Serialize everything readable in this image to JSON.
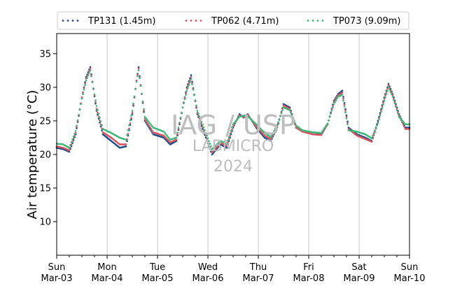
{
  "chart_data": {
    "type": "scatter",
    "ylabel": "Air temperature (°C)",
    "xlabel": "",
    "ylim": [
      5,
      38
    ],
    "xlim_days": [
      "2024-03-03",
      "2024-03-10"
    ],
    "yticks": [
      10,
      15,
      20,
      25,
      30,
      35
    ],
    "xticks": [
      {
        "day": "Sun",
        "date": "Mar-03"
      },
      {
        "day": "Mon",
        "date": "Mar-04"
      },
      {
        "day": "Tue",
        "date": "Mar-05"
      },
      {
        "day": "Wed",
        "date": "Mar-06"
      },
      {
        "day": "Thu",
        "date": "Mar-07"
      },
      {
        "day": "Fri",
        "date": "Mar-08"
      },
      {
        "day": "Sat",
        "date": "Mar-09"
      },
      {
        "day": "Sun",
        "date": "Mar-10"
      }
    ],
    "grid": "vertical",
    "legend_position": "top",
    "watermark": [
      "IAG / USP",
      "LABMICRO",
      "2024"
    ],
    "series": [
      {
        "name": "TP131 (1.45m)",
        "color": "#1f4e8c",
        "x": [
          "2024-03-03 00:00",
          "2024-03-03 03:00",
          "2024-03-03 06:00",
          "2024-03-03 09:00",
          "2024-03-03 12:00",
          "2024-03-03 14:00",
          "2024-03-03 16:00",
          "2024-03-03 19:00",
          "2024-03-03 22:00",
          "2024-03-04 02:00",
          "2024-03-04 06:00",
          "2024-03-04 09:00",
          "2024-03-04 12:00",
          "2024-03-04 14:00",
          "2024-03-04 15:00",
          "2024-03-04 18:00",
          "2024-03-04 22:00",
          "2024-03-05 03:00",
          "2024-03-05 06:00",
          "2024-03-05 09:00",
          "2024-03-05 12:00",
          "2024-03-05 14:00",
          "2024-03-05 16:00",
          "2024-03-05 19:00",
          "2024-03-05 23:00",
          "2024-03-06 02:00",
          "2024-03-06 06:00",
          "2024-03-06 09:00",
          "2024-03-06 12:00",
          "2024-03-06 15:00",
          "2024-03-06 17:00",
          "2024-03-06 19:00",
          "2024-03-06 23:00",
          "2024-03-07 03:00",
          "2024-03-07 06:00",
          "2024-03-07 09:00",
          "2024-03-07 12:00",
          "2024-03-07 15:00",
          "2024-03-07 18:00",
          "2024-03-07 21:00",
          "2024-03-08 02:00",
          "2024-03-08 06:00",
          "2024-03-08 09:00",
          "2024-03-08 12:00",
          "2024-03-08 14:00",
          "2024-03-08 16:00",
          "2024-03-08 19:00",
          "2024-03-08 23:00",
          "2024-03-09 03:00",
          "2024-03-09 06:00",
          "2024-03-09 09:00",
          "2024-03-09 12:00",
          "2024-03-09 14:00",
          "2024-03-09 16:00",
          "2024-03-09 19:00",
          "2024-03-09 22:00",
          "2024-03-10 00:00"
        ],
        "y": [
          21.0,
          20.8,
          20.4,
          23.0,
          28.5,
          31.5,
          33.0,
          26.5,
          23.0,
          22.0,
          21.0,
          21.2,
          26.0,
          31.0,
          33.0,
          25.0,
          23.0,
          22.5,
          21.5,
          22.0,
          27.0,
          30.0,
          31.8,
          26.0,
          22.5,
          20.0,
          21.5,
          21.0,
          24.0,
          26.0,
          25.5,
          26.0,
          24.0,
          22.5,
          22.0,
          24.0,
          27.5,
          27.0,
          24.0,
          23.5,
          23.0,
          23.0,
          24.5,
          28.0,
          29.0,
          29.5,
          24.0,
          23.0,
          22.5,
          22.0,
          25.0,
          28.5,
          30.5,
          29.0,
          26.0,
          24.0,
          24.0
        ]
      },
      {
        "name": "TP062 (4.71m)",
        "color": "#d9535e",
        "x": [
          "2024-03-03 00:00",
          "2024-03-03 03:00",
          "2024-03-03 06:00",
          "2024-03-03 09:00",
          "2024-03-03 12:00",
          "2024-03-03 14:00",
          "2024-03-03 16:00",
          "2024-03-03 19:00",
          "2024-03-03 22:00",
          "2024-03-04 02:00",
          "2024-03-04 06:00",
          "2024-03-04 09:00",
          "2024-03-04 12:00",
          "2024-03-04 14:00",
          "2024-03-04 15:00",
          "2024-03-04 18:00",
          "2024-03-04 22:00",
          "2024-03-05 03:00",
          "2024-03-05 06:00",
          "2024-03-05 09:00",
          "2024-03-05 12:00",
          "2024-03-05 14:00",
          "2024-03-05 16:00",
          "2024-03-05 19:00",
          "2024-03-05 23:00",
          "2024-03-06 02:00",
          "2024-03-06 06:00",
          "2024-03-06 09:00",
          "2024-03-06 12:00",
          "2024-03-06 15:00",
          "2024-03-06 17:00",
          "2024-03-06 19:00",
          "2024-03-06 23:00",
          "2024-03-07 03:00",
          "2024-03-07 06:00",
          "2024-03-07 09:00",
          "2024-03-07 12:00",
          "2024-03-07 15:00",
          "2024-03-07 18:00",
          "2024-03-07 21:00",
          "2024-03-08 02:00",
          "2024-03-08 06:00",
          "2024-03-08 09:00",
          "2024-03-08 12:00",
          "2024-03-08 14:00",
          "2024-03-08 16:00",
          "2024-03-08 19:00",
          "2024-03-08 23:00",
          "2024-03-09 03:00",
          "2024-03-09 06:00",
          "2024-03-09 09:00",
          "2024-03-09 12:00",
          "2024-03-09 14:00",
          "2024-03-09 16:00",
          "2024-03-09 19:00",
          "2024-03-09 22:00",
          "2024-03-10 00:00"
        ],
        "y": [
          21.2,
          21.0,
          20.6,
          23.2,
          28.5,
          31.3,
          32.8,
          26.8,
          23.3,
          22.5,
          21.5,
          21.5,
          26.2,
          31.0,
          32.8,
          25.3,
          23.3,
          22.8,
          21.8,
          22.2,
          27.0,
          29.8,
          31.5,
          26.2,
          22.8,
          20.3,
          21.7,
          21.3,
          24.2,
          25.8,
          25.6,
          25.9,
          24.2,
          22.8,
          22.3,
          24.2,
          27.3,
          26.8,
          24.0,
          23.4,
          23.0,
          22.9,
          24.5,
          27.8,
          28.8,
          29.2,
          23.8,
          22.8,
          22.3,
          21.9,
          24.8,
          28.3,
          30.3,
          28.8,
          25.8,
          23.8,
          23.8
        ]
      },
      {
        "name": "TP073 (9.09m)",
        "color": "#3cb878",
        "x": [
          "2024-03-03 00:00",
          "2024-03-03 03:00",
          "2024-03-03 06:00",
          "2024-03-03 09:00",
          "2024-03-03 12:00",
          "2024-03-03 14:00",
          "2024-03-03 16:00",
          "2024-03-03 19:00",
          "2024-03-03 22:00",
          "2024-03-04 02:00",
          "2024-03-04 06:00",
          "2024-03-04 09:00",
          "2024-03-04 12:00",
          "2024-03-04 14:00",
          "2024-03-04 15:00",
          "2024-03-04 18:00",
          "2024-03-04 22:00",
          "2024-03-05 03:00",
          "2024-03-05 06:00",
          "2024-03-05 09:00",
          "2024-03-05 12:00",
          "2024-03-05 14:00",
          "2024-03-05 16:00",
          "2024-03-05 19:00",
          "2024-03-05 23:00",
          "2024-03-06 02:00",
          "2024-03-06 06:00",
          "2024-03-06 09:00",
          "2024-03-06 12:00",
          "2024-03-06 15:00",
          "2024-03-06 17:00",
          "2024-03-06 19:00",
          "2024-03-06 23:00",
          "2024-03-07 03:00",
          "2024-03-07 06:00",
          "2024-03-07 09:00",
          "2024-03-07 12:00",
          "2024-03-07 15:00",
          "2024-03-07 18:00",
          "2024-03-07 21:00",
          "2024-03-08 02:00",
          "2024-03-08 06:00",
          "2024-03-08 09:00",
          "2024-03-08 12:00",
          "2024-03-08 14:00",
          "2024-03-08 16:00",
          "2024-03-08 19:00",
          "2024-03-08 23:00",
          "2024-03-09 03:00",
          "2024-03-09 06:00",
          "2024-03-09 09:00",
          "2024-03-09 12:00",
          "2024-03-09 14:00",
          "2024-03-09 16:00",
          "2024-03-09 19:00",
          "2024-03-09 22:00",
          "2024-03-10 00:00"
        ],
        "y": [
          21.6,
          21.5,
          21.0,
          23.5,
          28.3,
          31.0,
          32.5,
          27.2,
          23.8,
          23.2,
          22.5,
          22.2,
          26.5,
          30.8,
          32.5,
          25.6,
          24.0,
          23.4,
          22.2,
          22.5,
          27.0,
          29.5,
          31.2,
          26.5,
          23.2,
          20.8,
          22.0,
          21.6,
          24.5,
          25.6,
          25.8,
          25.7,
          24.5,
          23.2,
          22.6,
          24.4,
          27.0,
          26.6,
          24.3,
          23.6,
          23.3,
          23.2,
          24.6,
          27.5,
          28.6,
          28.9,
          23.6,
          23.4,
          23.0,
          22.4,
          24.7,
          28.0,
          30.0,
          28.6,
          25.6,
          24.5,
          24.5
        ]
      }
    ]
  }
}
